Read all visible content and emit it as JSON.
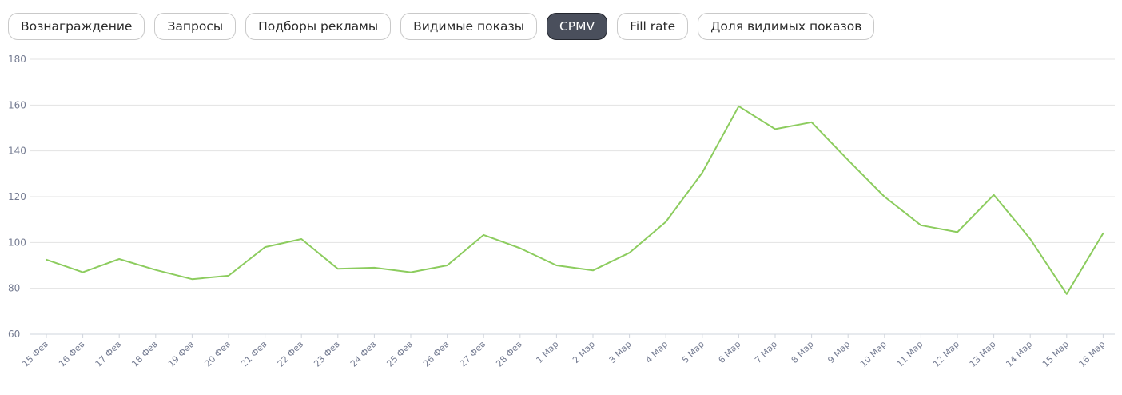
{
  "tabs": [
    {
      "label": "Вознаграждение",
      "active": false
    },
    {
      "label": "Запросы",
      "active": false
    },
    {
      "label": "Подборы рекламы",
      "active": false
    },
    {
      "label": "Видимые показы",
      "active": false
    },
    {
      "label": "CPMV",
      "active": true
    },
    {
      "label": "Fill rate",
      "active": false
    },
    {
      "label": "Доля видимых показов",
      "active": false
    }
  ],
  "colors": {
    "line": "#8ccc5e",
    "grid": "#e3e3e3",
    "axis": "#cfd4dc",
    "tick_text": "#757c92",
    "active_tab_bg": "#4a4f5c"
  },
  "chart_data": {
    "type": "line",
    "title": "",
    "xlabel": "",
    "ylabel": "",
    "ylim": [
      60,
      180
    ],
    "yticks": [
      60,
      80,
      100,
      120,
      140,
      160,
      180
    ],
    "grid": true,
    "categories": [
      "15 Фев",
      "16 Фев",
      "17 Фев",
      "18 Фев",
      "19 Фев",
      "20 Фев",
      "21 Фев",
      "22 Фев",
      "23 Фев",
      "24 Фев",
      "25 Фев",
      "26 Фев",
      "27 Фев",
      "28 Фев",
      "1 Мар",
      "2 Мар",
      "3 Мар",
      "4 Мар",
      "5 Мар",
      "6 Мар",
      "7 Мар",
      "8 Мар",
      "9 Мар",
      "10 Мар",
      "11 Мар",
      "12 Мар",
      "13 Мар",
      "14 Мар",
      "15 Мар",
      "16 Мар"
    ],
    "series": [
      {
        "values": [
          92.5,
          87,
          92.8,
          88,
          84,
          85.5,
          98,
          101.5,
          88.5,
          89,
          87,
          90,
          103.3,
          97.5,
          90,
          87.8,
          95.5,
          109,
          130.5,
          159.5,
          149.5,
          152.5,
          136,
          120,
          107.5,
          104.5,
          120.8,
          101.5,
          77.5,
          104
        ]
      }
    ]
  }
}
